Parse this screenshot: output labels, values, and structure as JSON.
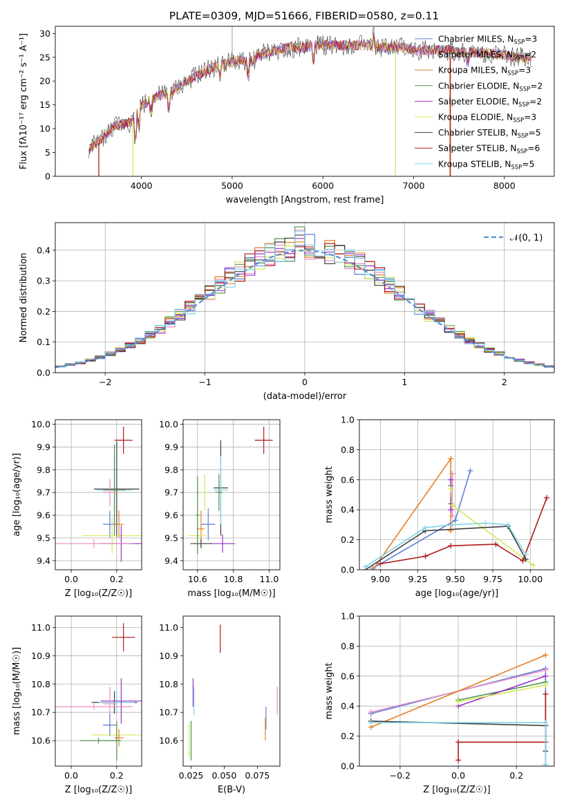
{
  "chart_data": [
    {
      "id": "spectrum",
      "type": "line",
      "title": "PLATE=0309, MJD=51666, FIBERID=0580, z=0.11",
      "xlabel": "wavelength [Angstrom, rest frame]",
      "ylabel": "Flux [fλ10⁻¹⁷ erg cm⁻² s⁻¹ A⁻¹]",
      "xlim": [
        3050,
        8550
      ],
      "ylim": [
        0,
        31.5
      ],
      "xticks": [
        4000,
        5000,
        6000,
        7000,
        8000
      ],
      "yticks": [
        0,
        5,
        10,
        15,
        20,
        25,
        30
      ],
      "grid": false,
      "legend_position": "upper-right",
      "continuum": [
        [
          3420,
          5.5
        ],
        [
          3500,
          7
        ],
        [
          3600,
          8.5
        ],
        [
          3700,
          10.5
        ],
        [
          3800,
          11
        ],
        [
          3900,
          11.5
        ],
        [
          4000,
          15
        ],
        [
          4100,
          16
        ],
        [
          4200,
          17
        ],
        [
          4300,
          17.5
        ],
        [
          4400,
          18.5
        ],
        [
          4500,
          20
        ],
        [
          4600,
          21
        ],
        [
          4700,
          22
        ],
        [
          4800,
          23
        ],
        [
          4900,
          23.5
        ],
        [
          5000,
          24
        ],
        [
          5100,
          24.5
        ],
        [
          5200,
          24
        ],
        [
          5300,
          25.5
        ],
        [
          5400,
          26
        ],
        [
          5500,
          26.5
        ],
        [
          5600,
          27
        ],
        [
          5700,
          27
        ],
        [
          5800,
          27
        ],
        [
          5900,
          27.5
        ],
        [
          6000,
          27.5
        ],
        [
          6100,
          27.5
        ],
        [
          6200,
          27.5
        ],
        [
          6300,
          27.5
        ],
        [
          6400,
          27.5
        ],
        [
          6500,
          27.5
        ],
        [
          6600,
          27
        ],
        [
          6700,
          27
        ],
        [
          6800,
          27
        ],
        [
          6900,
          27
        ],
        [
          7000,
          26.5
        ],
        [
          7100,
          26.5
        ],
        [
          7200,
          26.5
        ],
        [
          7300,
          26.5
        ],
        [
          7400,
          26.5
        ],
        [
          7500,
          26
        ],
        [
          7600,
          26
        ],
        [
          7700,
          26
        ],
        [
          7800,
          26
        ],
        [
          7900,
          25.5
        ],
        [
          8000,
          25.5
        ],
        [
          8100,
          25
        ],
        [
          8200,
          25
        ],
        [
          8300,
          25
        ]
      ],
      "legend": [
        {
          "label": "Chabrier MILES, N_SSP=3",
          "color": "#5b7fd6"
        },
        {
          "label": "Salpeter MILES, N_SSP=2",
          "color": "#e98cc5"
        },
        {
          "label": "Kroupa MILES, N_SSP=3",
          "color": "#c8862b"
        },
        {
          "label": "Chabrier ELODIE, N_SSP=2",
          "color": "#4f8f4f"
        },
        {
          "label": "Salpeter ELODIE, N_SSP=2",
          "color": "#9a32c8"
        },
        {
          "label": "Kroupa ELODIE, N_SSP=3",
          "color": "#d4e85a"
        },
        {
          "label": "Chabrier STELIB, N_SSP=5",
          "color": "#3c3c3c"
        },
        {
          "label": "Salpeter STELIB, N_SSP=6",
          "color": "#b01818"
        },
        {
          "label": "Kroupa STELIB, N_SSP=5",
          "color": "#7fd4e6"
        }
      ],
      "legend_parts": [
        {
          "pre": "Chabrier MILES, N",
          "post": "=3"
        },
        {
          "pre": "Salpeter MILES, N",
          "post": "=2"
        },
        {
          "pre": "Kroupa MILES, N",
          "post": "=3"
        },
        {
          "pre": "Chabrier ELODIE, N",
          "post": "=2"
        },
        {
          "pre": "Salpeter ELODIE, N",
          "post": "=2"
        },
        {
          "pre": "Kroupa ELODIE, N",
          "post": "=3"
        },
        {
          "pre": "Chabrier STELIB, N",
          "post": "=5"
        },
        {
          "pre": "Salpeter STELIB, N",
          "post": "=6"
        },
        {
          "pre": "Kroupa STELIB, N",
          "post": "=5"
        }
      ],
      "legend_sub": "SSP"
    },
    {
      "id": "residuals",
      "type": "histogram",
      "xlabel": "(data-model)/error",
      "ylabel": "Normed distribution",
      "xlim": [
        -2.5,
        2.5
      ],
      "ylim": [
        0,
        0.49
      ],
      "xticks": [
        -2,
        -1,
        0,
        1,
        2
      ],
      "yticks": [
        0.0,
        0.1,
        0.2,
        0.3,
        0.4
      ],
      "grid": true,
      "legend": [
        {
          "label": "𝒩(0, 1)",
          "color": "#5b8bd6"
        }
      ],
      "bin_width": 0.1,
      "series_colors": [
        "#5b7fd6",
        "#e98cc5",
        "#e67e22",
        "#4f8f4f",
        "#9a32c8",
        "#d4e85a",
        "#3c3c3c",
        "#b01818",
        "#7fd4e6"
      ]
    },
    {
      "id": "age-vs-Z",
      "type": "scatter",
      "xlabel": "Z [log₁₀(Z/Z☉)]",
      "ylabel": "age  [log₁₀(age/yr)]",
      "xlim": [
        -0.07,
        0.31
      ],
      "ylim": [
        9.36,
        10.02
      ],
      "xticks": [
        0.0,
        0.2
      ],
      "yticks": [
        9.4,
        9.5,
        9.6,
        9.7,
        9.8,
        9.9,
        10.0
      ],
      "grid": true,
      "points": [
        {
          "x": 0.23,
          "y": 9.93,
          "xerr": 0.04,
          "yerr": 0.06,
          "color": "#b01818"
        },
        {
          "x": 0.2,
          "y": 9.715,
          "xerr": 0.1,
          "yerr": 0.21,
          "color": "#3c3c3c"
        },
        {
          "x": 0.19,
          "y": 9.71,
          "xerr": 0.08,
          "yerr": 0.15,
          "color": "#7fd4e6"
        },
        {
          "x": 0.19,
          "y": 9.71,
          "xerr": 0.05,
          "yerr": 0.2,
          "color": "#4f8f4f"
        },
        {
          "x": 0.17,
          "y": 9.7,
          "xerr": 0.03,
          "yerr": 0.06,
          "color": "#e98cc5"
        },
        {
          "x": 0.17,
          "y": 9.56,
          "xerr": 0.03,
          "yerr": 0.06,
          "color": "#5b7fd6"
        },
        {
          "x": 0.21,
          "y": 9.56,
          "xerr": 0.02,
          "yerr": 0.06,
          "color": "#e67e22"
        },
        {
          "x": 0.18,
          "y": 9.51,
          "xerr": 0.13,
          "yerr": 0.08,
          "color": "#d4e85a"
        },
        {
          "x": 0.22,
          "y": 9.475,
          "xerr": 0.09,
          "yerr": 0.08,
          "color": "#9a32c8"
        },
        {
          "x": 0.1,
          "y": 9.475,
          "xerr": 0.17,
          "yerr": 0.02,
          "color": "#e98cc5"
        }
      ]
    },
    {
      "id": "age-vs-mass",
      "type": "scatter",
      "xlabel": "mass [log₁₀(M/M☉)]",
      "ylabel": "",
      "xlim": [
        10.52,
        11.06
      ],
      "ylim": [
        9.36,
        10.02
      ],
      "xticks": [
        10.6,
        10.8,
        11.0
      ],
      "yticks": [
        9.4,
        9.5,
        9.6,
        9.7,
        9.8,
        9.9,
        10.0
      ],
      "grid": true,
      "points": [
        {
          "x": 10.97,
          "y": 9.93,
          "xerr": 0.05,
          "yerr": 0.06,
          "color": "#b01818"
        },
        {
          "x": 10.73,
          "y": 9.72,
          "xerr": 0.04,
          "yerr": 0.21,
          "color": "#3c3c3c"
        },
        {
          "x": 10.73,
          "y": 9.71,
          "xerr": 0.04,
          "yerr": 0.15,
          "color": "#7fd4e6"
        },
        {
          "x": 10.72,
          "y": 9.7,
          "xerr": 0.02,
          "yerr": 0.08,
          "color": "#4f8f4f"
        },
        {
          "x": 10.66,
          "y": 9.56,
          "xerr": 0.04,
          "yerr": 0.07,
          "color": "#5b7fd6"
        },
        {
          "x": 10.62,
          "y": 9.54,
          "xerr": 0.02,
          "yerr": 0.08,
          "color": "#e67e22"
        },
        {
          "x": 10.6,
          "y": 9.51,
          "xerr": 0.05,
          "yerr": 0.08,
          "color": "#d4e85a"
        },
        {
          "x": 10.74,
          "y": 9.475,
          "xerr": 0.07,
          "yerr": 0.04,
          "color": "#9a32c8"
        },
        {
          "x": 10.62,
          "y": 9.475,
          "xerr": 0.06,
          "yerr": 0.02,
          "color": "#3c3c3c"
        },
        {
          "x": 10.64,
          "y": 9.7,
          "xerr": 0.01,
          "yerr": 0.08,
          "color": "#d4e85a"
        },
        {
          "x": 10.6,
          "y": 9.6,
          "xerr": 0.01,
          "yerr": 0.17,
          "color": "#4f8f4f"
        }
      ]
    },
    {
      "id": "weight-vs-age",
      "type": "line",
      "xlabel": "age  [log₁₀(age/yr)]",
      "ylabel": "mass weight",
      "xlim": [
        8.86,
        10.16
      ],
      "ylim": [
        0,
        1.0
      ],
      "xticks": [
        9.0,
        9.25,
        9.5,
        9.75,
        10.0
      ],
      "yticks": [
        0.0,
        0.2,
        0.4,
        0.6,
        0.8,
        1.0
      ],
      "grid": true,
      "series": [
        {
          "color": "#5b7fd6",
          "x": [
            8.95,
            9.5,
            9.6
          ],
          "y": [
            0.01,
            0.33,
            0.66
          ]
        },
        {
          "color": "#e98cc5",
          "x": [
            9.48,
            9.48
          ],
          "y": [
            0.36,
            0.64
          ]
        },
        {
          "color": "#e67e22",
          "x": [
            8.95,
            9.47,
            9.47
          ],
          "y": [
            0.0,
            0.74,
            0.26
          ]
        },
        {
          "color": "#4f8f4f",
          "x": [
            9.47,
            9.47
          ],
          "y": [
            0.56,
            0.44
          ]
        },
        {
          "color": "#9a32c8",
          "x": [
            9.47,
            9.47
          ],
          "y": [
            0.6,
            0.4
          ]
        },
        {
          "color": "#d4e85a",
          "x": [
            9.47,
            9.48,
            10.02
          ],
          "y": [
            0.54,
            0.43,
            0.03
          ]
        },
        {
          "color": "#3c3c3c",
          "x": [
            8.9,
            9.3,
            9.85,
            9.97
          ],
          "y": [
            0.0,
            0.26,
            0.29,
            0.07
          ]
        },
        {
          "color": "#b01818",
          "x": [
            9.0,
            9.3,
            9.47,
            9.77,
            9.95,
            10.11
          ],
          "y": [
            0.04,
            0.09,
            0.16,
            0.17,
            0.06,
            0.48
          ]
        },
        {
          "color": "#7fd4e6",
          "x": [
            8.9,
            9.3,
            9.48,
            9.7,
            9.85,
            9.97
          ],
          "y": [
            0.02,
            0.28,
            0.3,
            0.31,
            0.3,
            0.1
          ]
        }
      ]
    },
    {
      "id": "mass-vs-Z",
      "type": "scatter",
      "xlabel": "Z [log₁₀(Z/Z☉)]",
      "ylabel": "mass [log₁₀(M/M☉)]",
      "xlim": [
        -0.07,
        0.31
      ],
      "ylim": [
        10.51,
        11.04
      ],
      "xticks": [
        0.0,
        0.2
      ],
      "yticks": [
        10.6,
        10.7,
        10.8,
        10.9,
        11.0
      ],
      "grid": true,
      "points": [
        {
          "x": 0.23,
          "y": 10.965,
          "xerr": 0.05,
          "yerr": 0.05,
          "color": "#b01818"
        },
        {
          "x": 0.19,
          "y": 10.735,
          "xerr": 0.1,
          "yerr": 0.04,
          "color": "#3c3c3c"
        },
        {
          "x": 0.2,
          "y": 10.735,
          "xerr": 0.08,
          "yerr": 0.04,
          "color": "#7fd4e6"
        },
        {
          "x": 0.22,
          "y": 10.74,
          "xerr": 0.09,
          "yerr": 0.08,
          "color": "#9a32c8"
        },
        {
          "x": 0.17,
          "y": 10.73,
          "xerr": 0.03,
          "yerr": 0.06,
          "color": "#e98cc5"
        },
        {
          "x": 0.1,
          "y": 10.72,
          "xerr": 0.17,
          "yerr": 0.01,
          "color": "#e98cc5"
        },
        {
          "x": 0.17,
          "y": 10.655,
          "xerr": 0.03,
          "yerr": 0.04,
          "color": "#5b7fd6"
        },
        {
          "x": 0.2,
          "y": 10.62,
          "xerr": 0.11,
          "yerr": 0.03,
          "color": "#d4e85a"
        },
        {
          "x": 0.21,
          "y": 10.61,
          "xerr": 0.02,
          "yerr": 0.03,
          "color": "#e67e22"
        },
        {
          "x": 0.12,
          "y": 10.6,
          "xerr": 0.08,
          "yerr": 0.01,
          "color": "#4f8f4f"
        },
        {
          "x": 0.2,
          "y": 10.6,
          "xerr": 0.02,
          "yerr": 0.07,
          "color": "#4f8f4f"
        }
      ]
    },
    {
      "id": "mass-vs-ebv",
      "type": "scatter",
      "xlabel": "E(B-V)",
      "ylabel": "",
      "xlim": [
        0.019,
        0.092
      ],
      "ylim": [
        10.51,
        11.04
      ],
      "xticks": [
        0.025,
        0.05,
        0.075
      ],
      "ytick_labels_shown": true,
      "yticks": [
        10.6,
        10.7,
        10.8,
        10.9,
        11.0
      ],
      "grid": false,
      "points": [
        {
          "x": 0.047,
          "y": 10.96,
          "xerr": 0.0,
          "yerr": 0.05,
          "color": "#b01818"
        },
        {
          "x": 0.0265,
          "y": 10.77,
          "xerr": 0.0,
          "yerr": 0.05,
          "color": "#9a32c8"
        },
        {
          "x": 0.0272,
          "y": 10.74,
          "xerr": 0.0,
          "yerr": 0.05,
          "color": "#7fd4e6"
        },
        {
          "x": 0.0235,
          "y": 10.6,
          "xerr": 0.0,
          "yerr": 0.06,
          "color": "#d4e85a"
        },
        {
          "x": 0.025,
          "y": 10.6,
          "xerr": 0.0,
          "yerr": 0.07,
          "color": "#4f8f4f"
        },
        {
          "x": 0.0815,
          "y": 10.68,
          "xerr": 0.0,
          "yerr": 0.04,
          "color": "#5b7fd6"
        },
        {
          "x": 0.081,
          "y": 10.64,
          "xerr": 0.0,
          "yerr": 0.04,
          "color": "#e67e22"
        },
        {
          "x": 0.09,
          "y": 10.74,
          "xerr": 0.0,
          "yerr": 0.05,
          "color": "#e98cc5"
        }
      ]
    },
    {
      "id": "weight-vs-Z",
      "type": "line",
      "xlabel": "Z [log₁₀(Z/Z☉)]",
      "ylabel": "mass weight",
      "xlim": [
        -0.34,
        0.33
      ],
      "ylim": [
        0,
        1.0
      ],
      "xticks": [
        -0.2,
        0.0,
        0.2
      ],
      "yticks": [
        0.0,
        0.2,
        0.4,
        0.6,
        0.8,
        1.0
      ],
      "grid": true,
      "series": [
        {
          "color": "#5b7fd6",
          "x": [
            -0.3,
            0.3,
            0.3
          ],
          "y": [
            0.35,
            0.65,
            0.01
          ]
        },
        {
          "color": "#e98cc5",
          "x": [
            -0.3,
            0.3
          ],
          "y": [
            0.36,
            0.64
          ]
        },
        {
          "color": "#e67e22",
          "x": [
            -0.3,
            0.3
          ],
          "y": [
            0.26,
            0.74
          ]
        },
        {
          "color": "#4f8f4f",
          "x": [
            0.0,
            0.3
          ],
          "y": [
            0.44,
            0.56
          ]
        },
        {
          "color": "#9a32c8",
          "x": [
            0.0,
            0.3
          ],
          "y": [
            0.4,
            0.6
          ]
        },
        {
          "color": "#d4e85a",
          "x": [
            0.0,
            0.3
          ],
          "y": [
            0.43,
            0.54
          ]
        },
        {
          "color": "#3c3c3c",
          "x": [
            -0.3,
            0.3,
            0.3
          ],
          "y": [
            0.3,
            0.27,
            0.1
          ]
        },
        {
          "color": "#b01818",
          "x": [
            0.0,
            0.0,
            0.3,
            0.3
          ],
          "y": [
            0.04,
            0.16,
            0.16,
            0.48
          ]
        },
        {
          "color": "#7fd4e6",
          "x": [
            -0.3,
            0.3,
            0.3
          ],
          "y": [
            0.29,
            0.29,
            0.01
          ]
        }
      ]
    }
  ]
}
